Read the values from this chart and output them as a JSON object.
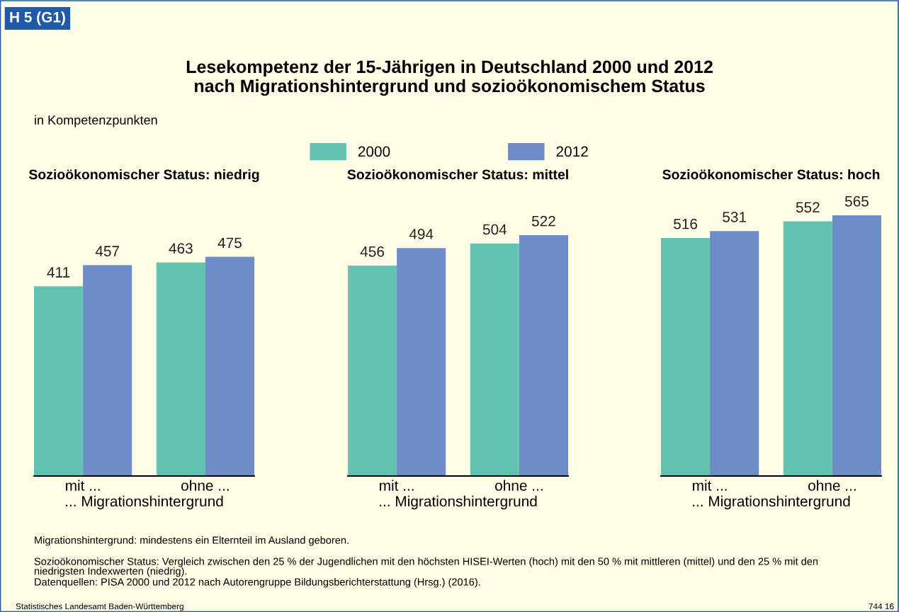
{
  "chart_data": [
    {
      "type": "bar",
      "title": "Lesekompetenz der 15-Jährigen in Deutschland 2000 und 2012\nnach Migrationshintergrund und sozioökonomischem Status",
      "subtitle": "Sozioökonomischer Status: niedrig",
      "xlabel": "... Migrationshintergrund",
      "categories": [
        "mit ...",
        "ohne ..."
      ],
      "series": [
        {
          "name": "2000",
          "color": "#62c4b0",
          "values": [
            411,
            463
          ]
        },
        {
          "name": "2012",
          "color": "#6d8cc8",
          "values": [
            457,
            475
          ]
        }
      ],
      "data_labels": true,
      "tick_labels": "x",
      "grid": false,
      "legend": "top",
      "annotations": [
        "H 5 (G1)",
        "in Kompetenzpunkten",
        "Migrationshintergrund: mindestens ein Elternteil im Ausland geboren.",
        "Sozioökonomischer Status: Vergleich zwischen den 25 % der Jugendlichen mit den höchsten HISEI-Werten (hoch) mit den 50 % mit mittleren (mittel) und den 25 % mit den niedrigsten Indexwerten (niedrig).",
        "Datenquellen: PISA 2000 und 2012 nach Autorengruppe Bildungsberichterstattung (Hrsg.) (2016).",
        "Statistisches Landesamt Baden-Württemberg",
        "744 16"
      ]
    },
    {
      "type": "bar",
      "subtitle": "Sozioökonomischer Status: mittel",
      "xlabel": "... Migrationshintergrund",
      "categories": [
        "mit ...",
        "ohne ..."
      ],
      "series": [
        {
          "color": "#62c4b0",
          "values": [
            456,
            504
          ]
        },
        {
          "color": "#6d8cc8",
          "values": [
            494,
            522
          ]
        }
      ],
      "data_labels": true,
      "tick_labels": "x",
      "grid": false,
      "legend": false
    },
    {
      "type": "bar",
      "subtitle": "Sozioökonomischer Status: hoch",
      "xlabel": "... Migrationshintergrund",
      "categories": [
        "mit ...",
        "ohne ..."
      ],
      "series": [
        {
          "color": "#62c4b0",
          "values": [
            516,
            552
          ]
        },
        {
          "color": "#6d8cc8",
          "values": [
            531,
            565
          ]
        }
      ],
      "data_labels": true,
      "tick_labels": "x",
      "grid": false,
      "legend": false
    }
  ]
}
